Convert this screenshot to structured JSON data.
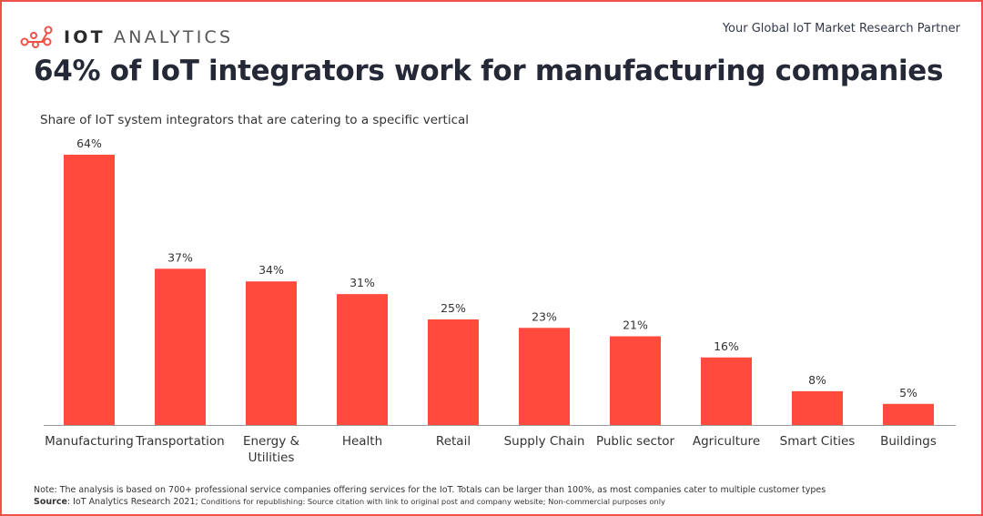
{
  "header": {
    "logo_bold": "IOT",
    "logo_light": "ANALYTICS",
    "tagline": "Your Global IoT Market Research Partner",
    "logo_icon": "network-nodes-icon"
  },
  "title": "64% of IoT integrators work for manufacturing companies",
  "subtitle": "Share of IoT system integrators that are catering to a specific vertical",
  "footer": {
    "note": "Note: The analysis is based on 700+ professional service companies offering services for the IoT. Totals can be larger than 100%, as most companies cater to multiple customer types",
    "source_label": "Source",
    "source_text": ": IoT Analytics Research 2021; ",
    "conditions": "Conditions for republishing: Source citation with link to original post and company website; Non-commercial purposes only"
  },
  "colors": {
    "bar": "#ff4a3d",
    "border": "#f0524a",
    "title": "#252836"
  },
  "chart_data": {
    "type": "bar",
    "title": "64% of IoT integrators work for manufacturing companies",
    "subtitle": "Share of IoT system integrators that are catering to a specific vertical",
    "xlabel": "",
    "ylabel": "",
    "categories": [
      "Manufacturing",
      "Transportation",
      "Energy & Utilities",
      "Health",
      "Retail",
      "Supply Chain",
      "Public sector",
      "Agriculture",
      "Smart Cities",
      "Buildings"
    ],
    "category_lines": [
      [
        "Manufacturing"
      ],
      [
        "Transportation"
      ],
      [
        "Energy &",
        "Utilities"
      ],
      [
        "Health"
      ],
      [
        "Retail"
      ],
      [
        "Supply Chain"
      ],
      [
        "Public sector"
      ],
      [
        "Agriculture"
      ],
      [
        "Smart Cities"
      ],
      [
        "Buildings"
      ]
    ],
    "values": [
      64,
      37,
      34,
      31,
      25,
      23,
      21,
      16,
      8,
      5
    ],
    "data_labels": [
      "64%",
      "37%",
      "34%",
      "31%",
      "25%",
      "23%",
      "21%",
      "16%",
      "8%",
      "5%"
    ],
    "unit": "%",
    "ylim": [
      0,
      64
    ],
    "grid": false,
    "legend": "none"
  }
}
